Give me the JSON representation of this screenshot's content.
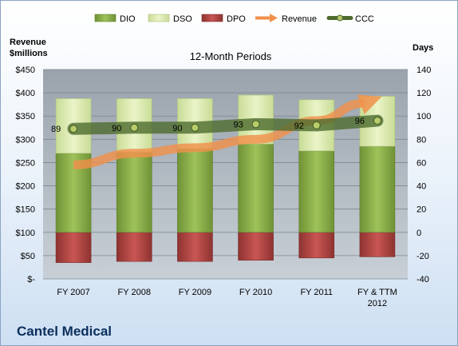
{
  "company": "Cantel Medical",
  "chart_data": {
    "type": "bar",
    "title": "12-Month Periods",
    "left_axis_label": [
      "Revenue",
      "$millions"
    ],
    "right_axis_label": "Days",
    "categories": [
      [
        "FY 2007"
      ],
      [
        "FY 2008"
      ],
      [
        "FY 2009"
      ],
      [
        "FY 2010"
      ],
      [
        "FY 2011"
      ],
      [
        "FY & TTM",
        "2012"
      ]
    ],
    "left_axis": {
      "min": 0,
      "max": 450,
      "step": 50,
      "ticks": [
        "$-",
        "$50",
        "$100",
        "$150",
        "$200",
        "$250",
        "$300",
        "$350",
        "$400",
        "$450"
      ]
    },
    "right_axis": {
      "min": -40,
      "max": 140,
      "step": 20,
      "ticks": [
        "-40",
        "-20",
        "0",
        "20",
        "40",
        "60",
        "80",
        "100",
        "120",
        "140"
      ]
    },
    "legend": {
      "placement": "top",
      "entries": [
        "DIO",
        "DSO",
        "DPO",
        "Revenue",
        "CCC"
      ]
    },
    "series": [
      {
        "name": "DIO",
        "axis": "right",
        "values": [
          68,
          69,
          72,
          76,
          70,
          74
        ]
      },
      {
        "name": "DSO",
        "axis": "right",
        "values": [
          47,
          46,
          43,
          42,
          44,
          43
        ]
      },
      {
        "name": "DPO",
        "axis": "right",
        "values": [
          -26,
          -25,
          -25,
          -24,
          -22,
          -21
        ]
      },
      {
        "name": "Revenue",
        "axis": "left",
        "values": [
          245,
          270,
          282,
          300,
          340,
          388
        ]
      },
      {
        "name": "CCC",
        "axis": "right",
        "values": [
          89,
          90,
          90,
          93,
          92,
          96
        ],
        "data_labels": [
          "89",
          "90",
          "90",
          "93",
          "92",
          "96"
        ]
      }
    ],
    "colors": {
      "DIO": "#8fb34a",
      "DSO": "#dcebb2",
      "DPO": "#b94a48",
      "Revenue": "#f0904a",
      "CCC": "#4e6b2e"
    },
    "grid": true
  }
}
